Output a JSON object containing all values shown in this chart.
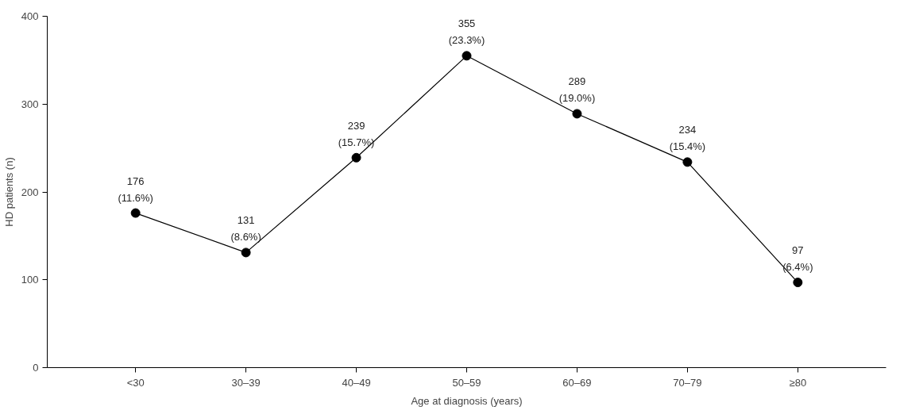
{
  "chart_data": {
    "type": "line",
    "xlabel": "Age at diagnosis (years)",
    "ylabel": "HD patients (n)",
    "categories": [
      "<30",
      "30–39",
      "40–49",
      "50–59",
      "60–69",
      "70–79",
      "≥80"
    ],
    "series": [
      {
        "color": "#000000",
        "values": [
          176,
          131,
          239,
          355,
          289,
          234,
          97
        ],
        "value_labels": [
          "176\n(11.6%)",
          "131\n(8.6%)",
          "239\n(15.7%)",
          "355\n(23.3%)",
          "289\n(19.0%)",
          "234\n(15.4%)",
          "97\n(6.4%)"
        ]
      }
    ],
    "ylim": [
      0,
      400
    ],
    "yticks": [
      0,
      100,
      200,
      300,
      400
    ],
    "grid": false,
    "marker": "circle",
    "line_style": "solid"
  }
}
